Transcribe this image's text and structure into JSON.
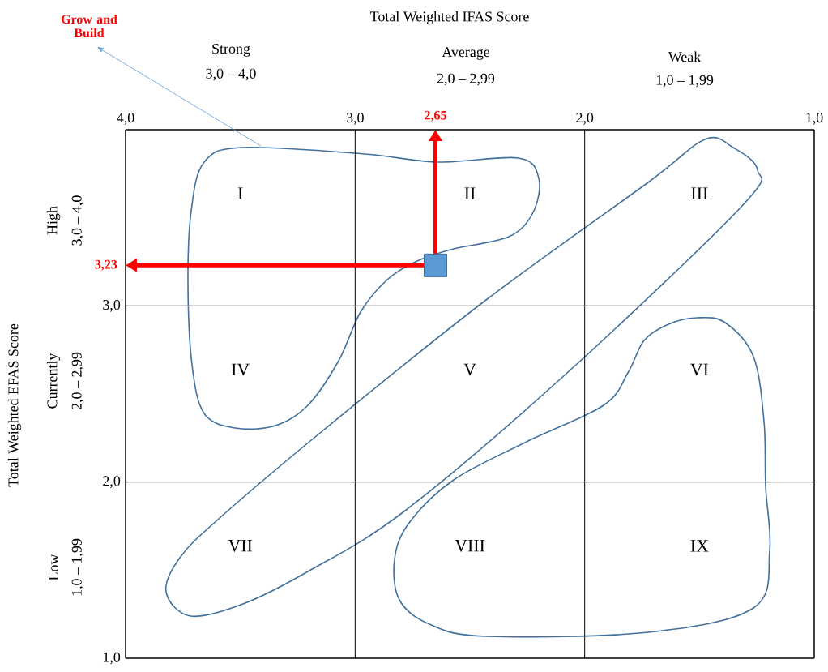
{
  "chart_data": {
    "type": "scatter",
    "x": [
      2.65
    ],
    "values": [
      3.23
    ],
    "color": "#5b9bd5",
    "marker": "square",
    "xlim": [
      4,
      1
    ],
    "ylim": [
      1,
      4
    ],
    "xticks": [
      {
        "value": 4,
        "label": "4,0"
      },
      {
        "value": 3,
        "label": "3,0"
      },
      {
        "value": 2,
        "label": "2,0"
      },
      {
        "value": 1,
        "label": "1,0"
      }
    ],
    "yticks": [
      {
        "value": 1,
        "label": "1,0"
      },
      {
        "value": 2,
        "label": "2,0"
      },
      {
        "value": 3,
        "label": "3,0"
      },
      {
        "value": 4,
        "label": null
      }
    ],
    "grid": true,
    "annotations": [
      "Grow and Build",
      "Strong",
      "3,0 – 4,0",
      "Average",
      "2,0 – 2,99",
      "Weak",
      "1,0 – 1,99",
      "High",
      "3,0 – 4,0",
      "Currently",
      "2,0 – 2,99",
      "Low",
      "1,0 – 1,99",
      "I",
      "II",
      "III",
      "IV",
      "V",
      "VI",
      "VII",
      "VIII",
      "IX",
      "2,65",
      "3,23",
      "Total Weighted IFAS Score",
      "Total Weighted EFAS Score"
    ]
  }
}
